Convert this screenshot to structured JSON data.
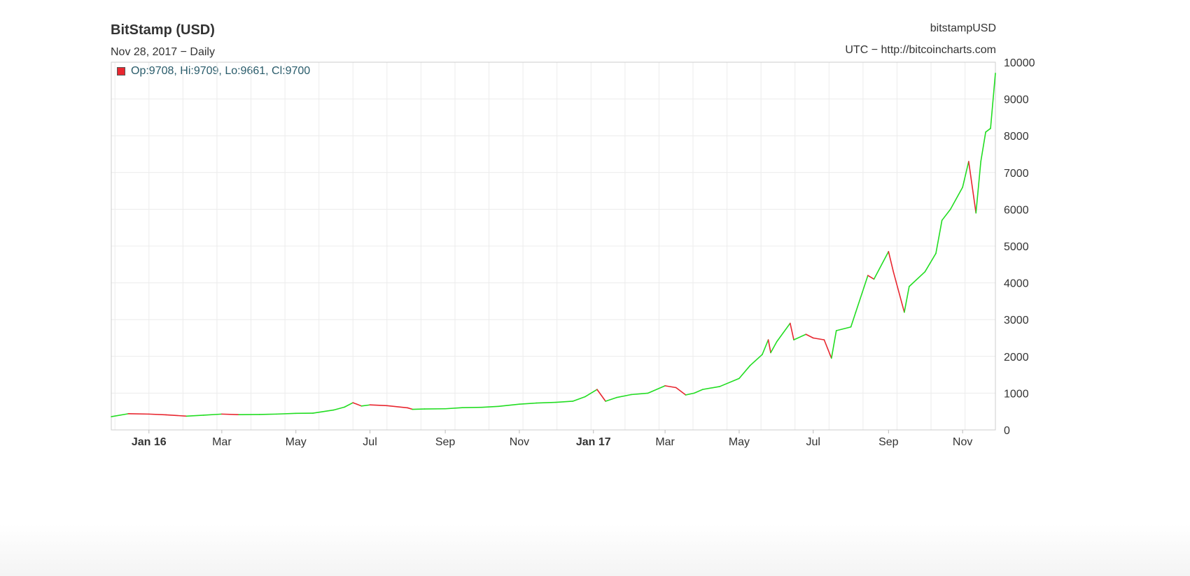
{
  "header": {
    "title": "BitStamp (USD)",
    "subtitle": "Nov 28, 2017 − Daily",
    "symbol": "bitstampUSD",
    "source": "UTC − http://bitcoincharts.com"
  },
  "legend": {
    "text": "Op:9708, Hi:9709, Lo:9661, Cl:9700",
    "swatch_color": "#e8262f"
  },
  "chart_data": {
    "type": "line",
    "title": "BitStamp (USD)",
    "subtitle": "Nov 28, 2017 − Daily",
    "xlabel": "",
    "ylabel": "",
    "ylim": [
      0,
      10000
    ],
    "xlim": [
      "2015-12-01",
      "2017-11-28"
    ],
    "grid": true,
    "y_axis_side": "right",
    "y_ticks": [
      0,
      1000,
      2000,
      3000,
      4000,
      5000,
      6000,
      7000,
      8000,
      9000,
      10000
    ],
    "x_ticks": [
      {
        "date": "2016-01-01",
        "label": "Jan 16",
        "bold": true
      },
      {
        "date": "2016-03-01",
        "label": "Mar",
        "bold": false
      },
      {
        "date": "2016-05-01",
        "label": "May",
        "bold": false
      },
      {
        "date": "2016-07-01",
        "label": "Jul",
        "bold": false
      },
      {
        "date": "2016-09-01",
        "label": "Sep",
        "bold": false
      },
      {
        "date": "2016-11-01",
        "label": "Nov",
        "bold": false
      },
      {
        "date": "2017-01-01",
        "label": "Jan 17",
        "bold": true
      },
      {
        "date": "2017-03-01",
        "label": "Mar",
        "bold": false
      },
      {
        "date": "2017-05-01",
        "label": "May",
        "bold": false
      },
      {
        "date": "2017-07-01",
        "label": "Jul",
        "bold": false
      },
      {
        "date": "2017-09-01",
        "label": "Sep",
        "bold": false
      },
      {
        "date": "2017-11-01",
        "label": "Nov",
        "bold": false
      }
    ],
    "up_color": "#22dd22",
    "down_color": "#e8262f",
    "series": [
      {
        "values": [
          [
            "2015-12-01",
            360
          ],
          [
            "2015-12-15",
            440
          ],
          [
            "2016-01-01",
            430
          ],
          [
            "2016-01-15",
            410
          ],
          [
            "2016-02-01",
            375
          ],
          [
            "2016-02-15",
            400
          ],
          [
            "2016-03-01",
            430
          ],
          [
            "2016-03-15",
            415
          ],
          [
            "2016-04-01",
            420
          ],
          [
            "2016-04-15",
            430
          ],
          [
            "2016-05-01",
            450
          ],
          [
            "2016-05-15",
            455
          ],
          [
            "2016-06-01",
            540
          ],
          [
            "2016-06-10",
            620
          ],
          [
            "2016-06-17",
            740
          ],
          [
            "2016-06-24",
            650
          ],
          [
            "2016-07-01",
            680
          ],
          [
            "2016-07-15",
            660
          ],
          [
            "2016-08-01",
            600
          ],
          [
            "2016-08-05",
            560
          ],
          [
            "2016-08-15",
            570
          ],
          [
            "2016-09-01",
            575
          ],
          [
            "2016-09-15",
            605
          ],
          [
            "2016-10-01",
            615
          ],
          [
            "2016-10-15",
            640
          ],
          [
            "2016-11-01",
            700
          ],
          [
            "2016-11-15",
            730
          ],
          [
            "2016-12-01",
            750
          ],
          [
            "2016-12-15",
            780
          ],
          [
            "2016-12-25",
            900
          ],
          [
            "2017-01-04",
            1100
          ],
          [
            "2017-01-11",
            780
          ],
          [
            "2017-01-20",
            880
          ],
          [
            "2017-02-01",
            960
          ],
          [
            "2017-02-15",
            1000
          ],
          [
            "2017-03-01",
            1200
          ],
          [
            "2017-03-10",
            1150
          ],
          [
            "2017-03-18",
            950
          ],
          [
            "2017-03-25",
            1000
          ],
          [
            "2017-04-01",
            1100
          ],
          [
            "2017-04-15",
            1180
          ],
          [
            "2017-05-01",
            1400
          ],
          [
            "2017-05-10",
            1750
          ],
          [
            "2017-05-20",
            2050
          ],
          [
            "2017-05-25",
            2450
          ],
          [
            "2017-05-27",
            2100
          ],
          [
            "2017-06-01",
            2400
          ],
          [
            "2017-06-12",
            2900
          ],
          [
            "2017-06-15",
            2450
          ],
          [
            "2017-06-25",
            2600
          ],
          [
            "2017-07-01",
            2500
          ],
          [
            "2017-07-10",
            2450
          ],
          [
            "2017-07-16",
            1950
          ],
          [
            "2017-07-20",
            2700
          ],
          [
            "2017-08-01",
            2800
          ],
          [
            "2017-08-05",
            3200
          ],
          [
            "2017-08-15",
            4200
          ],
          [
            "2017-08-20",
            4100
          ],
          [
            "2017-09-01",
            4850
          ],
          [
            "2017-09-05",
            4300
          ],
          [
            "2017-09-14",
            3200
          ],
          [
            "2017-09-18",
            3900
          ],
          [
            "2017-10-01",
            4300
          ],
          [
            "2017-10-10",
            4800
          ],
          [
            "2017-10-15",
            5700
          ],
          [
            "2017-10-22",
            6000
          ],
          [
            "2017-11-01",
            6600
          ],
          [
            "2017-11-06",
            7300
          ],
          [
            "2017-11-12",
            5900
          ],
          [
            "2017-11-16",
            7300
          ],
          [
            "2017-11-20",
            8100
          ],
          [
            "2017-11-24",
            8200
          ],
          [
            "2017-11-28",
            9700
          ]
        ]
      }
    ]
  }
}
